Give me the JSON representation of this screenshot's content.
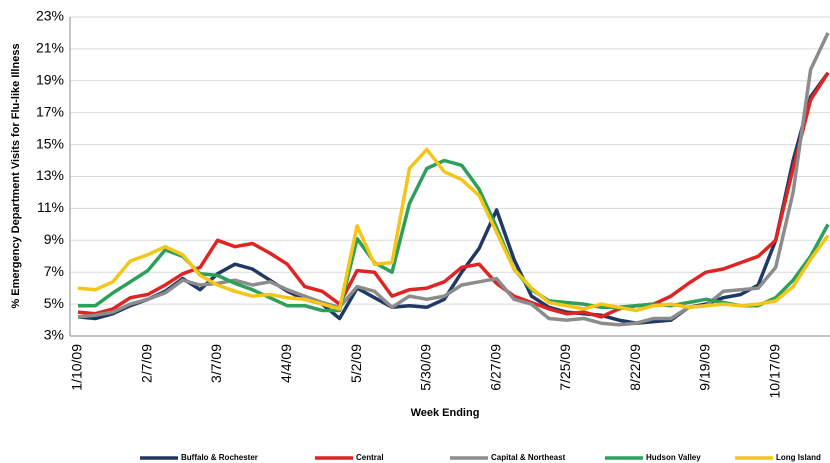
{
  "chart_data": {
    "type": "line",
    "y_label": "% Emergency Department Visits for Flu-like Illness",
    "x_label": "Week Ending",
    "categories": [
      "1/10/09",
      null,
      null,
      null,
      "2/7/09",
      null,
      null,
      null,
      "3/7/09",
      null,
      null,
      null,
      "4/4/09",
      null,
      null,
      null,
      "5/2/09",
      null,
      null,
      null,
      "5/30/09",
      null,
      null,
      null,
      "6/27/09",
      null,
      null,
      null,
      "7/25/09",
      null,
      null,
      null,
      "8/22/09",
      null,
      null,
      null,
      "9/19/09",
      null,
      null,
      null,
      "10/17/09",
      null,
      null,
      null
    ],
    "ylim": [
      3,
      23
    ],
    "yticks": [
      {
        "value": 3,
        "label": "3%"
      },
      {
        "value": 5,
        "label": "5%"
      },
      {
        "value": 7,
        "label": "7%"
      },
      {
        "value": 9,
        "label": "9%"
      },
      {
        "value": 11,
        "label": "11%"
      },
      {
        "value": 13,
        "label": "13%"
      },
      {
        "value": 15,
        "label": "15%"
      },
      {
        "value": 17,
        "label": "17%"
      },
      {
        "value": 19,
        "label": "19%"
      },
      {
        "value": 21,
        "label": "21%"
      },
      {
        "value": 23,
        "label": "23%"
      }
    ],
    "grid": true,
    "series": [
      {
        "name": "Buffalo & Rochester",
        "color": "#1f3864",
        "values": [
          4.2,
          4.1,
          4.4,
          4.9,
          5.3,
          5.8,
          6.6,
          5.9,
          6.9,
          7.5,
          7.2,
          6.5,
          5.8,
          5.3,
          5.0,
          4.1,
          6.0,
          5.4,
          4.8,
          4.9,
          4.8,
          5.3,
          7.0,
          8.5,
          10.9,
          7.8,
          5.5,
          4.8,
          4.5,
          4.4,
          4.3,
          4.0,
          3.8,
          3.9,
          4.0,
          4.8,
          5.0,
          5.4,
          5.6,
          6.2,
          9.0,
          14.0,
          18.0,
          19.5
        ]
      },
      {
        "name": "Central",
        "color": "#e02424",
        "values": [
          4.5,
          4.4,
          4.7,
          5.4,
          5.6,
          6.2,
          6.9,
          7.3,
          9.0,
          8.6,
          8.8,
          8.2,
          7.5,
          6.1,
          5.8,
          5.0,
          7.1,
          7.0,
          5.5,
          5.9,
          6.0,
          6.4,
          7.3,
          7.5,
          6.3,
          5.5,
          5.1,
          4.7,
          4.4,
          4.5,
          4.2,
          4.7,
          4.9,
          5.0,
          5.5,
          6.3,
          7.0,
          7.2,
          7.6,
          8.0,
          9.0,
          13.5,
          17.8,
          19.5
        ]
      },
      {
        "name": "Capital & Northeast",
        "color": "#8c8c8c",
        "values": [
          4.2,
          4.3,
          4.5,
          5.0,
          5.3,
          5.7,
          6.5,
          6.2,
          6.3,
          6.5,
          6.2,
          6.4,
          5.9,
          5.5,
          5.1,
          4.8,
          6.1,
          5.8,
          4.8,
          5.5,
          5.3,
          5.5,
          6.2,
          6.4,
          6.6,
          5.3,
          5.0,
          4.1,
          4.0,
          4.1,
          3.8,
          3.7,
          3.8,
          4.1,
          4.1,
          4.8,
          4.9,
          5.8,
          5.9,
          6.0,
          7.3,
          12.0,
          19.7,
          22.0
        ]
      },
      {
        "name": "Hudson Valley",
        "color": "#2ca05a",
        "values": [
          4.9,
          4.9,
          5.7,
          6.4,
          7.1,
          8.4,
          8.0,
          6.9,
          6.8,
          6.3,
          5.9,
          5.4,
          4.9,
          4.9,
          4.6,
          4.6,
          9.1,
          7.6,
          7.0,
          11.3,
          13.5,
          14.0,
          13.7,
          12.2,
          9.8,
          7.2,
          5.9,
          5.2,
          5.1,
          5.0,
          4.8,
          4.8,
          4.9,
          5.0,
          4.9,
          5.1,
          5.3,
          5.1,
          4.9,
          4.9,
          5.4,
          6.5,
          8.0,
          10.0
        ]
      },
      {
        "name": "Long Island",
        "color": "#f5c518",
        "values": [
          6.0,
          5.9,
          6.4,
          7.7,
          8.1,
          8.6,
          8.1,
          6.8,
          6.2,
          5.8,
          5.5,
          5.6,
          5.4,
          5.3,
          5.0,
          4.7,
          9.9,
          7.5,
          7.6,
          13.5,
          14.7,
          13.3,
          12.8,
          11.8,
          9.5,
          7.2,
          6.0,
          5.1,
          4.9,
          4.7,
          5.0,
          4.8,
          4.6,
          4.9,
          5.0,
          4.8,
          4.9,
          5.0,
          4.9,
          5.0,
          5.2,
          6.1,
          7.8,
          9.3
        ]
      }
    ]
  }
}
